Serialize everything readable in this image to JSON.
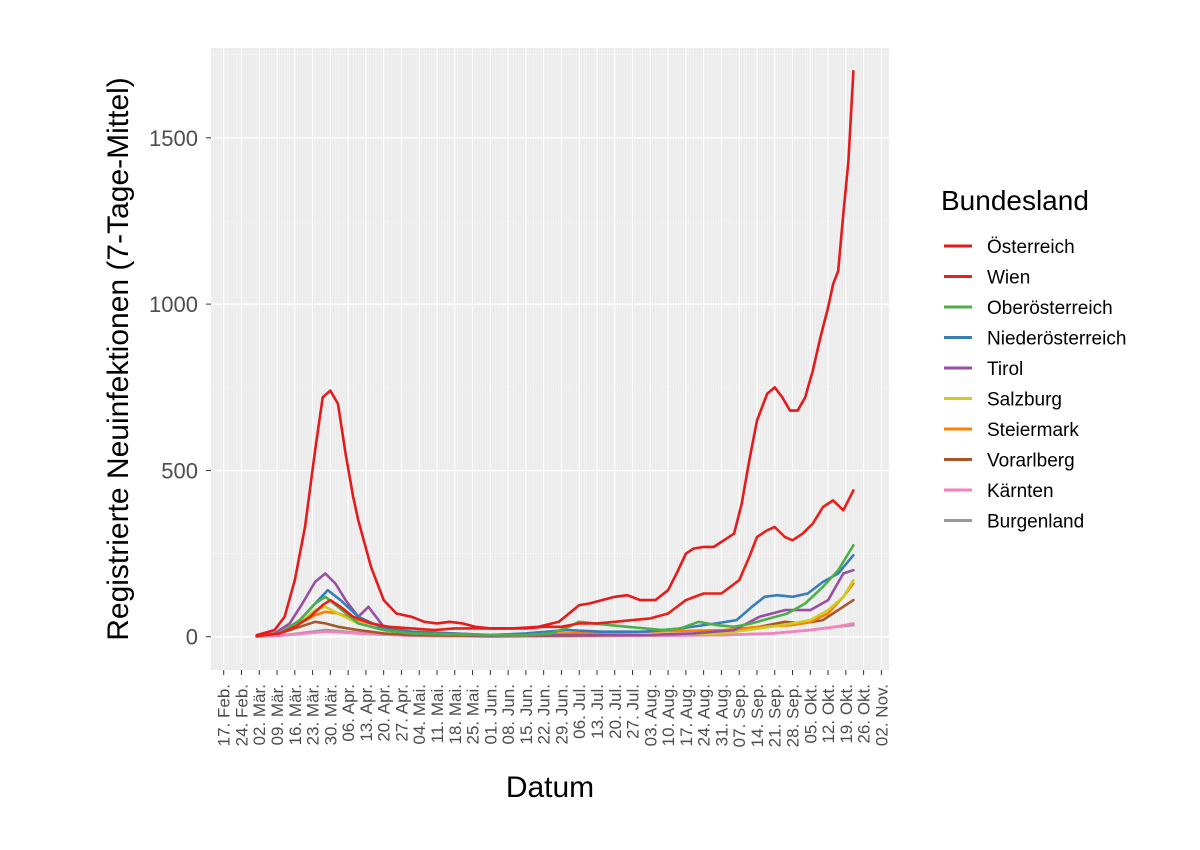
{
  "chart_data": {
    "type": "line",
    "title": "",
    "xlabel": "Datum",
    "ylabel": "Registrierte Neuinfektionen (7-Tage-Mittel)",
    "legend_title": "Bundesland",
    "legend_position": "right",
    "grid": true,
    "x_range": [
      "2020-02-12",
      "2020-11-05"
    ],
    "ylim": [
      -100,
      1770
    ],
    "y_ticks": [
      0,
      500,
      1000,
      1500
    ],
    "y_tick_labels": [
      "0",
      "500",
      "1000",
      "1500"
    ],
    "x_ticks": [
      "2020-02-17",
      "2020-02-24",
      "2020-03-02",
      "2020-03-09",
      "2020-03-16",
      "2020-03-23",
      "2020-03-30",
      "2020-04-06",
      "2020-04-13",
      "2020-04-20",
      "2020-04-27",
      "2020-05-04",
      "2020-05-11",
      "2020-05-18",
      "2020-05-25",
      "2020-06-01",
      "2020-06-08",
      "2020-06-15",
      "2020-06-22",
      "2020-06-29",
      "2020-07-06",
      "2020-07-13",
      "2020-07-20",
      "2020-07-27",
      "2020-08-03",
      "2020-08-10",
      "2020-08-17",
      "2020-08-24",
      "2020-08-31",
      "2020-09-07",
      "2020-09-14",
      "2020-09-21",
      "2020-09-28",
      "2020-10-05",
      "2020-10-12",
      "2020-10-19",
      "2020-10-26",
      "2020-11-02"
    ],
    "x_tick_labels": [
      "17. Feb.",
      "24. Feb.",
      "02. Mär.",
      "09. Mär.",
      "16. Mär.",
      "23. Mär.",
      "30. Mär.",
      "06. Apr.",
      "13. Apr.",
      "20. Apr.",
      "27. Apr.",
      "04. Mai.",
      "11. Mai.",
      "18. Mai.",
      "25. Mai.",
      "01. Jun.",
      "08. Jun.",
      "15. Jun.",
      "22. Jun.",
      "29. Jun.",
      "06. Jul.",
      "13. Jul.",
      "20. Jul.",
      "27. Jul.",
      "03. Aug.",
      "10. Aug.",
      "17. Aug.",
      "24. Aug.",
      "31. Aug.",
      "07. Sep.",
      "14. Sep.",
      "21. Sep.",
      "28. Sep.",
      "05. Okt.",
      "12. Okt.",
      "19. Okt.",
      "26. Okt.",
      "02. Nov."
    ],
    "series": [
      {
        "name": "Österreich",
        "color": "#e41a1c",
        "x": [
          "2020-03-01",
          "2020-03-08",
          "2020-03-12",
          "2020-03-16",
          "2020-03-20",
          "2020-03-24",
          "2020-03-27",
          "2020-03-30",
          "2020-04-02",
          "2020-04-05",
          "2020-04-08",
          "2020-04-10",
          "2020-04-15",
          "2020-04-20",
          "2020-04-25",
          "2020-05-01",
          "2020-05-06",
          "2020-05-11",
          "2020-05-16",
          "2020-05-21",
          "2020-05-26",
          "2020-06-01",
          "2020-06-10",
          "2020-06-20",
          "2020-06-28",
          "2020-07-02",
          "2020-07-06",
          "2020-07-10",
          "2020-07-15",
          "2020-07-20",
          "2020-07-25",
          "2020-07-30",
          "2020-08-05",
          "2020-08-10",
          "2020-08-14",
          "2020-08-17",
          "2020-08-20",
          "2020-08-24",
          "2020-08-28",
          "2020-09-01",
          "2020-09-05",
          "2020-09-08",
          "2020-09-11",
          "2020-09-14",
          "2020-09-18",
          "2020-09-21",
          "2020-09-24",
          "2020-09-27",
          "2020-09-30",
          "2020-10-03",
          "2020-10-06",
          "2020-10-09",
          "2020-10-12",
          "2020-10-14",
          "2020-10-16",
          "2020-10-18",
          "2020-10-20",
          "2020-10-22"
        ],
        "values": [
          5,
          20,
          60,
          170,
          330,
          560,
          720,
          740,
          700,
          550,
          420,
          350,
          210,
          110,
          70,
          60,
          45,
          40,
          45,
          40,
          30,
          25,
          25,
          30,
          45,
          70,
          95,
          100,
          110,
          120,
          125,
          110,
          110,
          140,
          200,
          250,
          265,
          270,
          270,
          290,
          310,
          400,
          530,
          650,
          730,
          750,
          720,
          680,
          680,
          720,
          800,
          900,
          990,
          1060,
          1100,
          1270,
          1430,
          1700
        ]
      },
      {
        "name": "Wien",
        "color": "#e8201a",
        "x": [
          "2020-03-01",
          "2020-03-10",
          "2020-03-16",
          "2020-03-22",
          "2020-03-27",
          "2020-03-30",
          "2020-04-03",
          "2020-04-08",
          "2020-04-15",
          "2020-04-22",
          "2020-05-01",
          "2020-05-10",
          "2020-05-18",
          "2020-05-25",
          "2020-06-01",
          "2020-06-08",
          "2020-06-15",
          "2020-06-22",
          "2020-06-29",
          "2020-07-06",
          "2020-07-13",
          "2020-07-20",
          "2020-07-27",
          "2020-08-03",
          "2020-08-10",
          "2020-08-17",
          "2020-08-24",
          "2020-08-31",
          "2020-09-07",
          "2020-09-11",
          "2020-09-14",
          "2020-09-18",
          "2020-09-21",
          "2020-09-25",
          "2020-09-28",
          "2020-10-02",
          "2020-10-06",
          "2020-10-10",
          "2020-10-14",
          "2020-10-18",
          "2020-10-22"
        ],
        "values": [
          2,
          10,
          30,
          60,
          95,
          110,
          90,
          60,
          40,
          30,
          25,
          20,
          25,
          25,
          25,
          25,
          25,
          30,
          30,
          40,
          40,
          45,
          50,
          55,
          70,
          110,
          130,
          130,
          170,
          240,
          300,
          320,
          330,
          300,
          290,
          310,
          340,
          390,
          410,
          380,
          440
        ]
      },
      {
        "name": "Oberösterreich",
        "color": "#4daf4a",
        "x": [
          "2020-03-01",
          "2020-03-10",
          "2020-03-18",
          "2020-03-24",
          "2020-03-28",
          "2020-04-02",
          "2020-04-10",
          "2020-04-20",
          "2020-05-01",
          "2020-06-01",
          "2020-06-15",
          "2020-06-25",
          "2020-07-02",
          "2020-07-06",
          "2020-07-12",
          "2020-07-18",
          "2020-07-25",
          "2020-08-01",
          "2020-08-08",
          "2020-08-15",
          "2020-08-22",
          "2020-08-29",
          "2020-09-05",
          "2020-09-12",
          "2020-09-19",
          "2020-09-26",
          "2020-10-03",
          "2020-10-10",
          "2020-10-16",
          "2020-10-22"
        ],
        "values": [
          2,
          10,
          50,
          100,
          120,
          90,
          40,
          20,
          10,
          5,
          5,
          10,
          30,
          45,
          40,
          35,
          30,
          25,
          20,
          25,
          45,
          35,
          30,
          40,
          55,
          70,
          100,
          150,
          200,
          275
        ]
      },
      {
        "name": "Niederösterreich",
        "color": "#377eb8",
        "x": [
          "2020-03-01",
          "2020-03-10",
          "2020-03-18",
          "2020-03-24",
          "2020-03-29",
          "2020-04-03",
          "2020-04-10",
          "2020-04-20",
          "2020-05-01",
          "2020-06-01",
          "2020-06-15",
          "2020-07-01",
          "2020-07-15",
          "2020-08-01",
          "2020-08-15",
          "2020-08-29",
          "2020-09-06",
          "2020-09-12",
          "2020-09-17",
          "2020-09-22",
          "2020-09-28",
          "2020-10-04",
          "2020-10-10",
          "2020-10-16",
          "2020-10-22"
        ],
        "values": [
          2,
          10,
          50,
          100,
          140,
          110,
          60,
          25,
          15,
          5,
          10,
          20,
          15,
          15,
          25,
          40,
          50,
          90,
          120,
          125,
          120,
          130,
          165,
          190,
          245
        ]
      },
      {
        "name": "Tirol",
        "color": "#984ea3",
        "x": [
          "2020-03-01",
          "2020-03-08",
          "2020-03-14",
          "2020-03-19",
          "2020-03-24",
          "2020-03-28",
          "2020-04-01",
          "2020-04-05",
          "2020-04-10",
          "2020-04-14",
          "2020-04-20",
          "2020-05-01",
          "2020-06-01",
          "2020-07-01",
          "2020-08-01",
          "2020-08-20",
          "2020-09-05",
          "2020-09-15",
          "2020-09-25",
          "2020-10-05",
          "2020-10-12",
          "2020-10-18",
          "2020-10-22"
        ],
        "values": [
          2,
          10,
          40,
          100,
          165,
          190,
          160,
          110,
          60,
          90,
          30,
          10,
          3,
          5,
          5,
          10,
          20,
          60,
          80,
          80,
          110,
          190,
          200
        ]
      },
      {
        "name": "Salzburg",
        "color": "#cccc22",
        "x": [
          "2020-03-01",
          "2020-03-10",
          "2020-03-18",
          "2020-03-24",
          "2020-03-28",
          "2020-04-02",
          "2020-04-10",
          "2020-04-20",
          "2020-05-01",
          "2020-06-01",
          "2020-07-01",
          "2020-08-01",
          "2020-09-01",
          "2020-09-15",
          "2020-09-28",
          "2020-10-05",
          "2020-10-12",
          "2020-10-18",
          "2020-10-22"
        ],
        "values": [
          2,
          10,
          40,
          80,
          90,
          70,
          40,
          20,
          10,
          3,
          5,
          5,
          10,
          25,
          40,
          50,
          80,
          120,
          170
        ]
      },
      {
        "name": "Steiermark",
        "color": "#ff7f00",
        "x": [
          "2020-03-01",
          "2020-03-10",
          "2020-03-18",
          "2020-03-24",
          "2020-03-28",
          "2020-04-02",
          "2020-04-10",
          "2020-04-20",
          "2020-05-01",
          "2020-06-01",
          "2020-07-01",
          "2020-08-01",
          "2020-09-01",
          "2020-09-15",
          "2020-09-28",
          "2020-10-05",
          "2020-10-12",
          "2020-10-18",
          "2020-10-22"
        ],
        "values": [
          2,
          10,
          40,
          65,
          75,
          70,
          50,
          30,
          15,
          5,
          10,
          15,
          20,
          30,
          35,
          45,
          70,
          120,
          160
        ]
      },
      {
        "name": "Vorarlberg",
        "color": "#a65628",
        "x": [
          "2020-03-01",
          "2020-03-10",
          "2020-03-18",
          "2020-03-24",
          "2020-03-28",
          "2020-04-02",
          "2020-04-10",
          "2020-04-20",
          "2020-05-01",
          "2020-06-01",
          "2020-07-01",
          "2020-08-01",
          "2020-09-01",
          "2020-09-15",
          "2020-09-25",
          "2020-10-02",
          "2020-10-10",
          "2020-10-16",
          "2020-10-22"
        ],
        "values": [
          2,
          10,
          30,
          45,
          40,
          30,
          20,
          10,
          5,
          2,
          3,
          5,
          10,
          30,
          45,
          40,
          50,
          80,
          110
        ]
      },
      {
        "name": "Kärnten",
        "color": "#f781bf",
        "x": [
          "2020-03-01",
          "2020-03-10",
          "2020-03-20",
          "2020-03-28",
          "2020-04-05",
          "2020-04-15",
          "2020-05-01",
          "2020-06-01",
          "2020-07-01",
          "2020-08-01",
          "2020-09-01",
          "2020-09-20",
          "2020-10-05",
          "2020-10-15",
          "2020-10-22"
        ],
        "values": [
          1,
          3,
          10,
          15,
          12,
          8,
          3,
          1,
          2,
          3,
          5,
          10,
          20,
          30,
          40
        ]
      },
      {
        "name": "Burgenland",
        "color": "#999999",
        "x": [
          "2020-03-01",
          "2020-03-10",
          "2020-03-20",
          "2020-03-28",
          "2020-04-05",
          "2020-04-15",
          "2020-05-01",
          "2020-06-01",
          "2020-07-01",
          "2020-08-01",
          "2020-09-01",
          "2020-09-20",
          "2020-10-05",
          "2020-10-15",
          "2020-10-22"
        ],
        "values": [
          1,
          3,
          12,
          20,
          15,
          8,
          3,
          1,
          2,
          3,
          5,
          10,
          20,
          30,
          35
        ]
      }
    ]
  }
}
